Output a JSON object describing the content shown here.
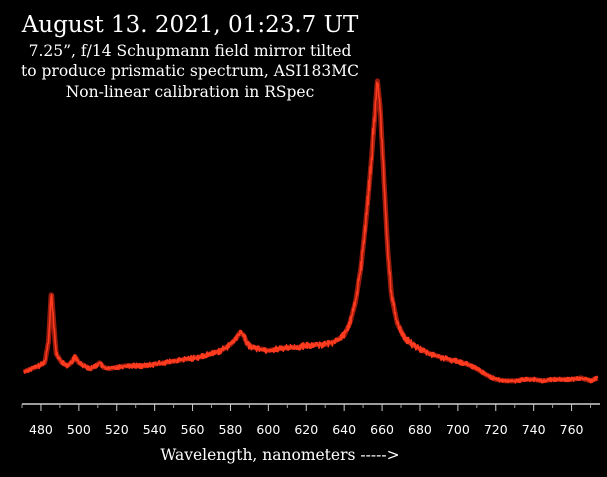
{
  "chart_data": {
    "type": "line",
    "title": "August 13. 2021, 01:23.7 UT",
    "subtitle": [
      "7.25”, f/14 Schupmann field mirror tilted",
      "to produce prismatic spectrum, ASI183MC",
      "Non-linear calibration in RSpec"
    ],
    "xlabel": "Wavelength, nanometers ----->",
    "ylabel": "",
    "xlim": [
      470,
      775
    ],
    "ylim": [
      0,
      100
    ],
    "x_ticks": [
      480,
      500,
      520,
      540,
      560,
      580,
      600,
      620,
      640,
      660,
      680,
      700,
      720,
      740,
      760
    ],
    "grid": false,
    "series": [
      {
        "color": "#ff3b1f",
        "points": [
          [
            471,
            5
          ],
          [
            475,
            6
          ],
          [
            479,
            7
          ],
          [
            482,
            8
          ],
          [
            484,
            15
          ],
          [
            485.5,
            32
          ],
          [
            486.5,
            23
          ],
          [
            488,
            11
          ],
          [
            491,
            8
          ],
          [
            494,
            7
          ],
          [
            496,
            8
          ],
          [
            498,
            10
          ],
          [
            500,
            8
          ],
          [
            503,
            7
          ],
          [
            506,
            6
          ],
          [
            509,
            7
          ],
          [
            511,
            8
          ],
          [
            513,
            6.5
          ],
          [
            516,
            6
          ],
          [
            520,
            6.5
          ],
          [
            525,
            7
          ],
          [
            530,
            7
          ],
          [
            535,
            7
          ],
          [
            540,
            7.5
          ],
          [
            545,
            8
          ],
          [
            550,
            8.5
          ],
          [
            555,
            9
          ],
          [
            560,
            9.5
          ],
          [
            565,
            10
          ],
          [
            570,
            11
          ],
          [
            575,
            12
          ],
          [
            580,
            14
          ],
          [
            583,
            16
          ],
          [
            585,
            18
          ],
          [
            587,
            17
          ],
          [
            589,
            14
          ],
          [
            592,
            13
          ],
          [
            596,
            12.5
          ],
          [
            600,
            12
          ],
          [
            605,
            12.5
          ],
          [
            610,
            13
          ],
          [
            615,
            13
          ],
          [
            620,
            13.5
          ],
          [
            625,
            14
          ],
          [
            630,
            14
          ],
          [
            635,
            15
          ],
          [
            640,
            17
          ],
          [
            643,
            21
          ],
          [
            646,
            28
          ],
          [
            649,
            40
          ],
          [
            652,
            58
          ],
          [
            654,
            72
          ],
          [
            656,
            88
          ],
          [
            657.5,
            101
          ],
          [
            659,
            92
          ],
          [
            661,
            68
          ],
          [
            663,
            45
          ],
          [
            665,
            30
          ],
          [
            668,
            21
          ],
          [
            672,
            16
          ],
          [
            676,
            14
          ],
          [
            680,
            12.5
          ],
          [
            685,
            11
          ],
          [
            690,
            10
          ],
          [
            695,
            9
          ],
          [
            700,
            8.5
          ],
          [
            705,
            7.5
          ],
          [
            710,
            6
          ],
          [
            715,
            4
          ],
          [
            720,
            2.5
          ],
          [
            725,
            2
          ],
          [
            730,
            2
          ],
          [
            735,
            2.5
          ],
          [
            740,
            2.5
          ],
          [
            745,
            2
          ],
          [
            750,
            2.5
          ],
          [
            755,
            2.5
          ],
          [
            760,
            2.5
          ],
          [
            765,
            3
          ],
          [
            770,
            2
          ],
          [
            774,
            3
          ]
        ]
      }
    ]
  }
}
